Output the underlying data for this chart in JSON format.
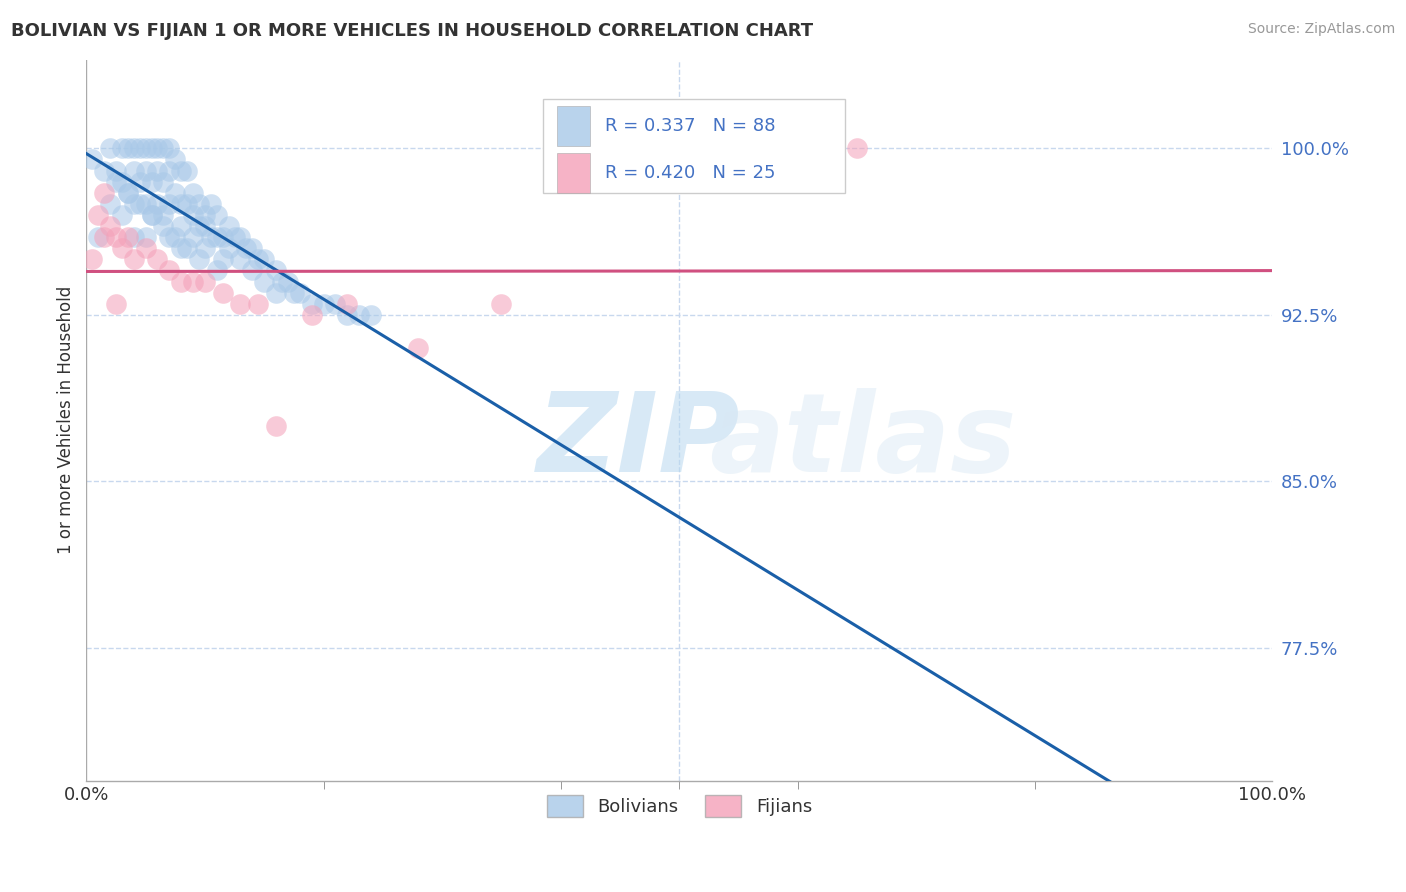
{
  "title": "BOLIVIAN VS FIJIAN 1 OR MORE VEHICLES IN HOUSEHOLD CORRELATION CHART",
  "source": "Source: ZipAtlas.com",
  "ylabel": "1 or more Vehicles in Household",
  "ytick_values": [
    0.775,
    0.85,
    0.925,
    1.0
  ],
  "ytick_labels": [
    "77.5%",
    "85.0%",
    "92.5%",
    "100.0%"
  ],
  "xlim": [
    0.0,
    1.0
  ],
  "ylim": [
    0.715,
    1.04
  ],
  "legend_r_bolivian": "R = 0.337",
  "legend_n_bolivian": "N = 88",
  "legend_r_fijian": "R = 0.420",
  "legend_n_fijian": "N = 25",
  "bolivian_color": "#a8c8e8",
  "fijian_color": "#f4a0b8",
  "trendline_bolivian_color": "#1a5fa8",
  "trendline_fijian_color": "#d05080",
  "background_color": "#ffffff",
  "grid_color": "#c8d8ee",
  "watermark_zip": "ZIP",
  "watermark_atlas": "atlas",
  "legend_labels": [
    "Bolivians",
    "Fijians"
  ],
  "bolivian_x": [
    0.01,
    0.02,
    0.02,
    0.025,
    0.03,
    0.03,
    0.03,
    0.035,
    0.035,
    0.04,
    0.04,
    0.04,
    0.04,
    0.045,
    0.045,
    0.05,
    0.05,
    0.05,
    0.05,
    0.055,
    0.055,
    0.055,
    0.06,
    0.06,
    0.06,
    0.065,
    0.065,
    0.065,
    0.07,
    0.07,
    0.07,
    0.07,
    0.075,
    0.075,
    0.08,
    0.08,
    0.08,
    0.08,
    0.085,
    0.085,
    0.09,
    0.09,
    0.09,
    0.095,
    0.095,
    0.1,
    0.1,
    0.1,
    0.105,
    0.105,
    0.11,
    0.11,
    0.115,
    0.115,
    0.12,
    0.12,
    0.125,
    0.13,
    0.13,
    0.135,
    0.14,
    0.14,
    0.145,
    0.15,
    0.15,
    0.16,
    0.16,
    0.165,
    0.17,
    0.175,
    0.18,
    0.19,
    0.2,
    0.21,
    0.22,
    0.23,
    0.24,
    0.005,
    0.015,
    0.025,
    0.035,
    0.045,
    0.055,
    0.065,
    0.075,
    0.085,
    0.095,
    0.11
  ],
  "bolivian_y": [
    0.96,
    1.0,
    0.975,
    0.99,
    1.0,
    0.985,
    0.97,
    1.0,
    0.98,
    1.0,
    0.99,
    0.975,
    0.96,
    1.0,
    0.985,
    1.0,
    0.99,
    0.975,
    0.96,
    1.0,
    0.985,
    0.97,
    1.0,
    0.99,
    0.975,
    1.0,
    0.985,
    0.97,
    1.0,
    0.99,
    0.975,
    0.96,
    0.995,
    0.98,
    0.99,
    0.975,
    0.965,
    0.955,
    0.99,
    0.975,
    0.98,
    0.97,
    0.96,
    0.975,
    0.965,
    0.97,
    0.965,
    0.955,
    0.975,
    0.96,
    0.97,
    0.96,
    0.96,
    0.95,
    0.965,
    0.955,
    0.96,
    0.96,
    0.95,
    0.955,
    0.955,
    0.945,
    0.95,
    0.95,
    0.94,
    0.945,
    0.935,
    0.94,
    0.94,
    0.935,
    0.935,
    0.93,
    0.93,
    0.93,
    0.925,
    0.925,
    0.925,
    0.995,
    0.99,
    0.985,
    0.98,
    0.975,
    0.97,
    0.965,
    0.96,
    0.955,
    0.95,
    0.945
  ],
  "fijian_x": [
    0.005,
    0.01,
    0.015,
    0.02,
    0.025,
    0.03,
    0.035,
    0.04,
    0.05,
    0.06,
    0.07,
    0.08,
    0.09,
    0.1,
    0.115,
    0.13,
    0.145,
    0.16,
    0.19,
    0.22,
    0.28,
    0.35,
    0.65,
    0.015,
    0.025
  ],
  "fijian_y": [
    0.95,
    0.97,
    0.96,
    0.965,
    0.96,
    0.955,
    0.96,
    0.95,
    0.955,
    0.95,
    0.945,
    0.94,
    0.94,
    0.94,
    0.935,
    0.93,
    0.93,
    0.875,
    0.925,
    0.93,
    0.91,
    0.93,
    1.0,
    0.98,
    0.93
  ]
}
